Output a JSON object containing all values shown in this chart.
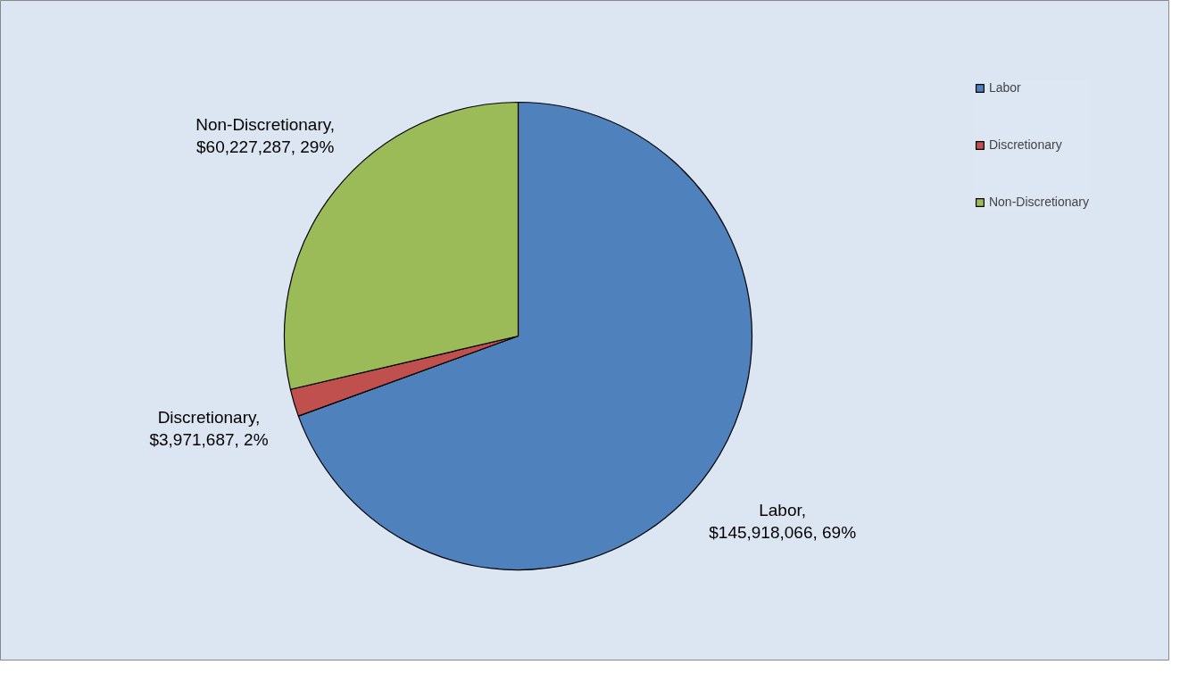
{
  "chart_data": {
    "type": "pie",
    "categories": [
      "Labor",
      "Discretionary",
      "Non-Discretionary"
    ],
    "values": [
      145918066,
      3971687,
      60227287
    ],
    "colors": [
      "#4f81bd",
      "#c0504d",
      "#9bbb59"
    ],
    "value_labels": [
      "Labor,\n$145,918,066, 69%",
      "Discretionary,\n$3,971,687, 2%",
      "Non-Discretionary,\n$60,227,287, 29%"
    ],
    "legend": "top right"
  }
}
